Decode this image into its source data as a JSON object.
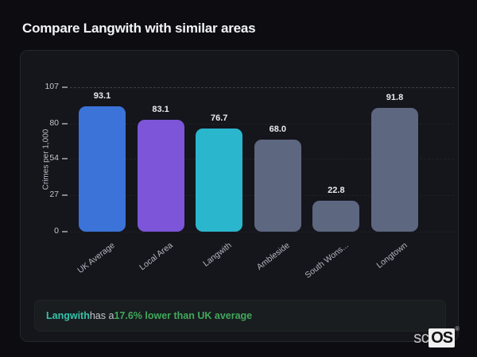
{
  "header": {
    "title": "Compare Langwith with similar areas"
  },
  "chart_data": {
    "type": "bar",
    "title": "",
    "xlabel": "",
    "ylabel": "Crimes per 1,000",
    "categories": [
      "UK Average",
      "Local Area",
      "Langwith",
      "Ambleside",
      "South Wons...",
      "Longtown"
    ],
    "values": [
      93.1,
      83.1,
      76.7,
      68.0,
      22.8,
      91.8
    ],
    "value_labels": [
      "93.1",
      "83.1",
      "76.7",
      "68.0",
      "22.8",
      "91.8"
    ],
    "bar_colors": [
      "#3b73d9",
      "#7c55d8",
      "#2ab7ce",
      "#5d6780",
      "#5d6780",
      "#5d6780"
    ],
    "yticks": [
      0,
      27,
      54,
      80,
      107
    ],
    "ylim": [
      0,
      107
    ],
    "legend": false,
    "grid": "horizontal-dashed-faint",
    "category_label_rotation_deg": -38
  },
  "footer": {
    "area_name": "Langwith",
    "connector": " has a ",
    "stat_text": "17.6% lower than UK average",
    "area_color": "#35c3ab",
    "stat_color": "#41a85c"
  },
  "logo": {
    "prefix": "sc",
    "suffix": "OS",
    "mark": "®"
  }
}
